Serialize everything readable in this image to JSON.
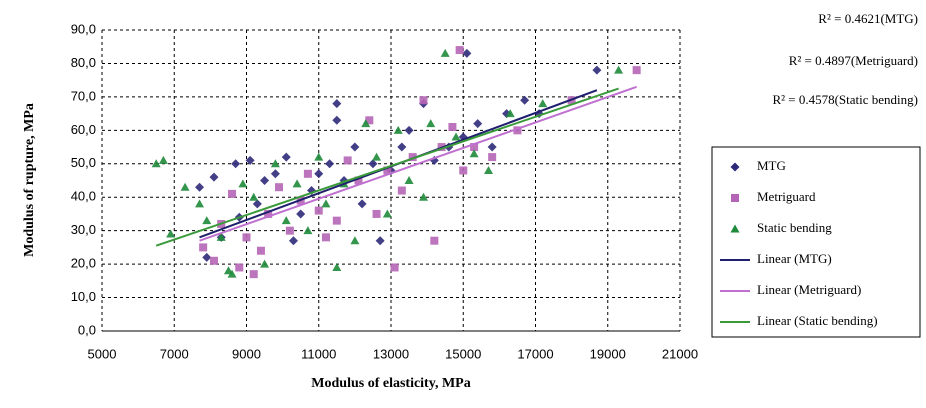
{
  "chart_data": {
    "type": "scatter",
    "x_label": "Modulus of elasticity, MPa",
    "y_label": "Modulus of rupture, MPa",
    "annotations": [
      "R² = 0.4621(MTG)",
      "R² = 0.4897(Metriguard)",
      "R² = 0.4578(Static bending)"
    ],
    "xlim": [
      5000,
      21000
    ],
    "xticks": [
      5000,
      7000,
      9000,
      11000,
      13000,
      15000,
      17000,
      19000,
      21000
    ],
    "ylim": [
      0,
      90
    ],
    "yticks": [
      {
        "value": 0,
        "label": "0,0"
      },
      {
        "value": 10,
        "label": "10,0"
      },
      {
        "value": 20,
        "label": "20,0"
      },
      {
        "value": 30,
        "label": "30,0"
      },
      {
        "value": 40,
        "label": "40,0"
      },
      {
        "value": 50,
        "label": "50,0"
      },
      {
        "value": 60,
        "label": "60,0"
      },
      {
        "value": 70,
        "label": "70,0"
      },
      {
        "value": 80,
        "label": "80,0"
      },
      {
        "value": 90,
        "label": "90,0"
      }
    ],
    "grid": true,
    "legend": "right",
    "series": [
      {
        "name": "MTG",
        "color": "#2e2a7a",
        "marker": "diamond",
        "x": [
          7700,
          7900,
          8100,
          8300,
          8700,
          8800,
          9100,
          9300,
          9500,
          9800,
          10100,
          10300,
          10500,
          10800,
          11000,
          11300,
          11500,
          11500,
          11700,
          12000,
          12200,
          12500,
          12700,
          13000,
          13300,
          13500,
          13900,
          14200,
          14600,
          15000,
          15100,
          15400,
          15800,
          16200,
          16700,
          17100,
          18700
        ],
        "values": [
          43,
          22,
          46,
          28,
          50,
          34,
          51,
          38,
          45,
          47,
          52,
          27,
          35,
          42,
          47,
          50,
          68,
          63,
          45,
          55,
          38,
          50,
          27,
          48,
          55,
          60,
          68,
          51,
          55,
          58,
          83,
          62,
          55,
          65,
          69,
          65,
          78
        ]
      },
      {
        "name": "Metriguard",
        "color": "#b565b5",
        "marker": "square",
        "x": [
          7800,
          8100,
          8300,
          8600,
          8800,
          9000,
          9200,
          9400,
          9600,
          9900,
          10200,
          10500,
          10700,
          11000,
          11200,
          11500,
          11800,
          12100,
          12400,
          12600,
          12900,
          13100,
          13300,
          13600,
          13900,
          14200,
          14400,
          14700,
          14900,
          15000,
          15300,
          15800,
          16500,
          18000,
          19800
        ],
        "values": [
          25,
          21,
          32,
          41,
          19,
          28,
          17,
          24,
          35,
          43,
          30,
          39,
          47,
          36,
          28,
          33,
          51,
          45,
          63,
          35,
          48,
          19,
          42,
          52,
          69,
          27,
          55,
          61,
          84,
          48,
          55,
          52,
          60,
          69,
          78
        ]
      },
      {
        "name": "Static bending",
        "color": "#1e8a3a",
        "marker": "triangle",
        "x": [
          6500,
          6700,
          6900,
          7300,
          7700,
          7900,
          8300,
          8500,
          8600,
          8900,
          9200,
          9500,
          9800,
          10100,
          10400,
          10700,
          11000,
          11200,
          11500,
          11700,
          12000,
          12300,
          12600,
          12900,
          13200,
          13500,
          13900,
          14100,
          14500,
          14800,
          15300,
          15700,
          16300,
          17200,
          19300
        ],
        "values": [
          50,
          51,
          29,
          43,
          38,
          33,
          28,
          18,
          17,
          44,
          40,
          20,
          50,
          33,
          44,
          30,
          52,
          38,
          19,
          44,
          27,
          62,
          52,
          35,
          60,
          45,
          40,
          62,
          83,
          58,
          53,
          48,
          65,
          68,
          78
        ]
      },
      {
        "name": "Linear (MTG)",
        "color": "#1f1f6e",
        "marker": "line",
        "x": [
          7700,
          18700
        ],
        "values": [
          28,
          72
        ]
      },
      {
        "name": "Linear (Metriguard)",
        "color": "#c070d0",
        "marker": "line",
        "x": [
          7700,
          19800
        ],
        "values": [
          27,
          73
        ]
      },
      {
        "name": "Linear (Static bending)",
        "color": "#3a9a3a",
        "marker": "line",
        "x": [
          6500,
          19300
        ],
        "values": [
          25.5,
          72.5
        ]
      }
    ]
  }
}
